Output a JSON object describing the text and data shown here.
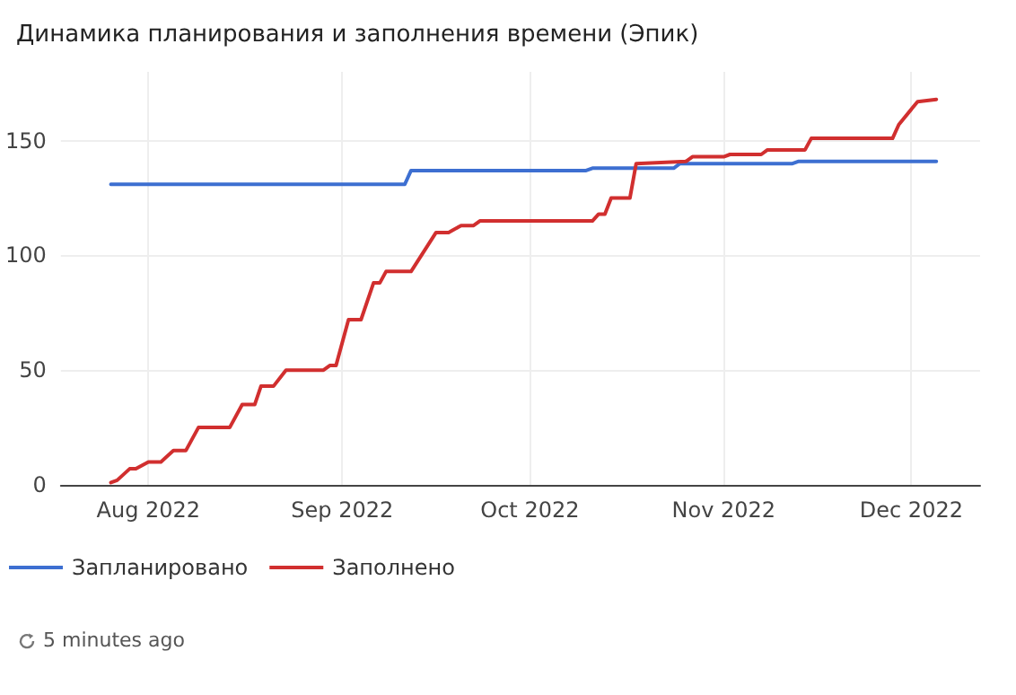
{
  "chart_data": {
    "type": "line",
    "title": "Динамика планирования и заполнения времени (Эпик)",
    "series": [
      {
        "name": "Запланировано",
        "color": "#3d6fd1",
        "x": [
          "2022-07-26",
          "2022-09-11",
          "2022-09-12",
          "2022-10-10",
          "2022-10-11",
          "2022-10-24",
          "2022-10-25",
          "2022-11-12",
          "2022-11-13",
          "2022-12-05"
        ],
        "values": [
          131,
          131,
          137,
          137,
          138,
          138,
          140,
          140,
          141,
          141
        ]
      },
      {
        "name": "Заполнено",
        "color": "#d12f2f",
        "x": [
          "2022-07-26",
          "2022-07-27",
          "2022-07-29",
          "2022-07-30",
          "2022-08-01",
          "2022-08-03",
          "2022-08-05",
          "2022-08-07",
          "2022-08-09",
          "2022-08-14",
          "2022-08-16",
          "2022-08-18",
          "2022-08-19",
          "2022-08-21",
          "2022-08-23",
          "2022-08-29",
          "2022-08-30",
          "2022-08-31",
          "2022-09-02",
          "2022-09-04",
          "2022-09-06",
          "2022-09-07",
          "2022-09-08",
          "2022-09-12",
          "2022-09-16",
          "2022-09-18",
          "2022-09-20",
          "2022-09-22",
          "2022-09-23",
          "2022-10-11",
          "2022-10-12",
          "2022-10-13",
          "2022-10-14",
          "2022-10-17",
          "2022-10-18",
          "2022-10-26",
          "2022-10-27",
          "2022-11-01",
          "2022-11-02",
          "2022-11-07",
          "2022-11-08",
          "2022-11-14",
          "2022-11-15",
          "2022-11-28",
          "2022-11-29",
          "2022-12-02",
          "2022-12-05"
        ],
        "values": [
          1,
          2,
          7,
          7,
          10,
          10,
          15,
          15,
          25,
          25,
          35,
          35,
          43,
          43,
          50,
          50,
          52,
          52,
          72,
          72,
          88,
          88,
          93,
          93,
          110,
          110,
          113,
          113,
          115,
          115,
          118,
          118,
          125,
          125,
          140,
          141,
          143,
          143,
          144,
          144,
          146,
          146,
          151,
          151,
          157,
          167,
          168
        ]
      }
    ],
    "xlim": [
      "2022-07-18",
      "2022-12-12"
    ],
    "xticks": [
      {
        "value": "2022-08-01",
        "label": "Aug 2022"
      },
      {
        "value": "2022-09-01",
        "label": "Sep 2022"
      },
      {
        "value": "2022-10-01",
        "label": "Oct 2022"
      },
      {
        "value": "2022-11-01",
        "label": "Nov 2022"
      },
      {
        "value": "2022-12-01",
        "label": "Dec 2022"
      }
    ],
    "ylim": [
      0,
      180
    ],
    "yticks": [
      0,
      50,
      100,
      150
    ],
    "grid": true,
    "legend": "bottom left",
    "line_style": "solid",
    "marker": "none",
    "annotations": [
      "5 minutes ago"
    ]
  }
}
